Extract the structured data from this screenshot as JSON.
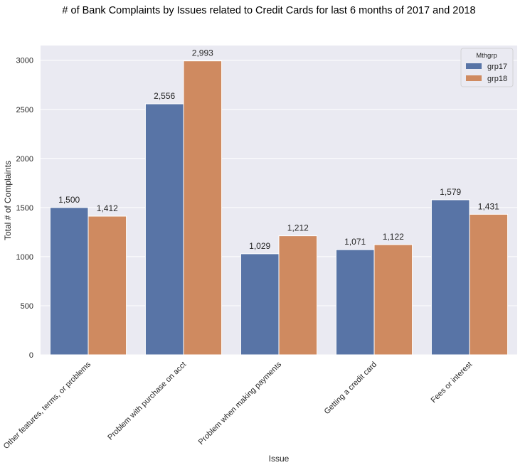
{
  "chart_data": {
    "type": "bar",
    "title": "# of Bank Complaints by Issues related to Credit Cards for last 6 months of 2017 and 2018",
    "xlabel": "Issue",
    "ylabel": "Total # of Complaints",
    "ylim": [
      0,
      3150
    ],
    "yticks": [
      0,
      500,
      1000,
      1500,
      2000,
      2500,
      3000
    ],
    "ytick_labels": [
      "0",
      "500",
      "1000",
      "1500",
      "2000",
      "2500",
      "3000"
    ],
    "grid": true,
    "legend_position": "top-right",
    "legend_title": "Mthgrp",
    "categories": [
      "Other features, terms, or problems",
      "Problem with purchase on acct",
      "Problem when making payments",
      "Getting a credit card",
      "Fees or interest"
    ],
    "series": [
      {
        "name": "grp17",
        "color": "#5874a6",
        "values": [
          1500,
          2556,
          1029,
          1071,
          1579
        ],
        "labels": [
          "1,500",
          "2,556",
          "1,029",
          "1,071",
          "1,579"
        ]
      },
      {
        "name": "grp18",
        "color": "#cf8a60",
        "values": [
          1412,
          2993,
          1212,
          1122,
          1431
        ],
        "labels": [
          "1,412",
          "2,993",
          "1,212",
          "1,122",
          "1,431"
        ]
      }
    ]
  }
}
